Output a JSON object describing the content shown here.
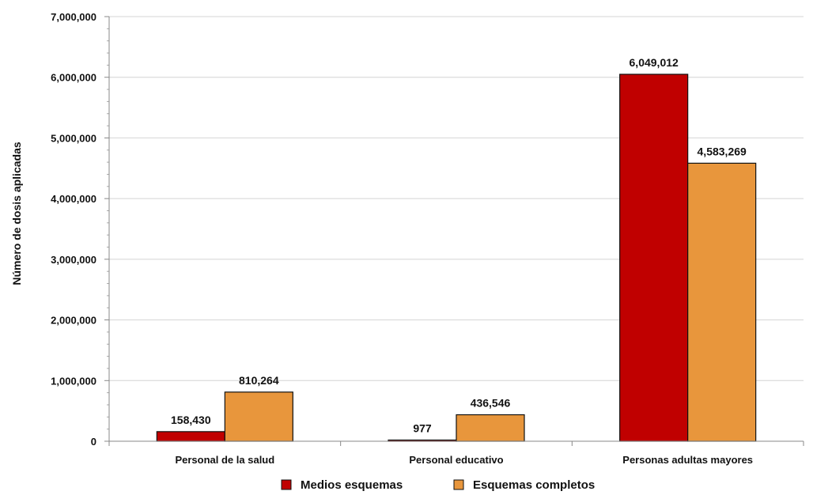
{
  "chart_data": {
    "type": "bar",
    "title": "",
    "xlabel": "",
    "ylabel": "Número de dosis aplicadas",
    "ylim": [
      0,
      7000000
    ],
    "yticks": [
      0,
      1000000,
      2000000,
      3000000,
      4000000,
      5000000,
      6000000,
      7000000
    ],
    "ytick_labels": [
      "0",
      "1,000,000",
      "2,000,000",
      "3,000,000",
      "4,000,000",
      "5,000,000",
      "6,000,000",
      "7,000,000"
    ],
    "categories": [
      "Personal de la salud",
      "Personal educativo",
      "Personas adultas mayores"
    ],
    "series": [
      {
        "name": "Medios esquemas",
        "color": "#c00000",
        "values": [
          158430,
          977,
          6049012
        ],
        "labels": [
          "158,430",
          "977",
          "6,049,012"
        ]
      },
      {
        "name": "Esquemas completos",
        "color": "#e8963c",
        "values": [
          810264,
          436546,
          4583269
        ],
        "labels": [
          "810,264",
          "436,546",
          "4,583,269"
        ]
      }
    ],
    "grid": true,
    "legend_position": "bottom"
  }
}
